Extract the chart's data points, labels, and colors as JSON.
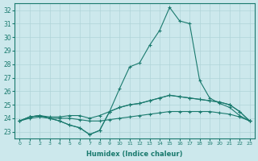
{
  "xlabel": "Humidex (Indice chaleur)",
  "x": [
    0,
    1,
    2,
    3,
    4,
    5,
    6,
    7,
    8,
    9,
    10,
    11,
    12,
    13,
    14,
    15,
    16,
    17,
    18,
    19,
    20,
    21,
    22,
    23
  ],
  "line1": [
    23.8,
    24.0,
    24.1,
    24.0,
    24.0,
    24.0,
    23.9,
    23.8,
    23.8,
    23.9,
    24.0,
    24.1,
    24.2,
    24.3,
    24.4,
    24.5,
    24.5,
    24.5,
    24.5,
    24.5,
    24.4,
    24.3,
    24.1,
    23.8
  ],
  "line2": [
    23.8,
    24.1,
    24.2,
    24.1,
    24.1,
    24.2,
    24.2,
    24.0,
    24.2,
    24.5,
    24.8,
    25.0,
    25.1,
    25.3,
    25.5,
    25.7,
    25.6,
    25.5,
    25.4,
    25.3,
    25.2,
    25.0,
    24.5,
    23.8
  ],
  "line3": [
    23.8,
    24.1,
    24.2,
    24.0,
    23.8,
    23.5,
    23.3,
    22.8,
    23.1,
    24.5,
    24.8,
    25.0,
    25.1,
    25.3,
    25.5,
    25.7,
    25.6,
    25.5,
    25.4,
    25.3,
    25.2,
    25.0,
    24.5,
    23.8
  ],
  "line4": [
    23.8,
    24.1,
    24.2,
    24.0,
    23.8,
    23.5,
    23.3,
    22.8,
    23.1,
    24.5,
    26.2,
    27.8,
    28.1,
    29.4,
    30.5,
    32.2,
    31.2,
    31.0,
    26.8,
    25.5,
    25.1,
    24.8,
    24.2,
    23.8
  ],
  "ylim": [
    22.5,
    32.5
  ],
  "xlim": [
    -0.5,
    23.5
  ],
  "yticks": [
    23,
    24,
    25,
    26,
    27,
    28,
    29,
    30,
    31,
    32
  ],
  "xticks": [
    0,
    1,
    2,
    3,
    4,
    5,
    6,
    7,
    8,
    9,
    10,
    11,
    12,
    13,
    14,
    15,
    16,
    17,
    18,
    19,
    20,
    21,
    22,
    23
  ],
  "line_color": "#1a7a6e",
  "bg_color": "#cce8ec",
  "grid_color": "#b0d4d8"
}
